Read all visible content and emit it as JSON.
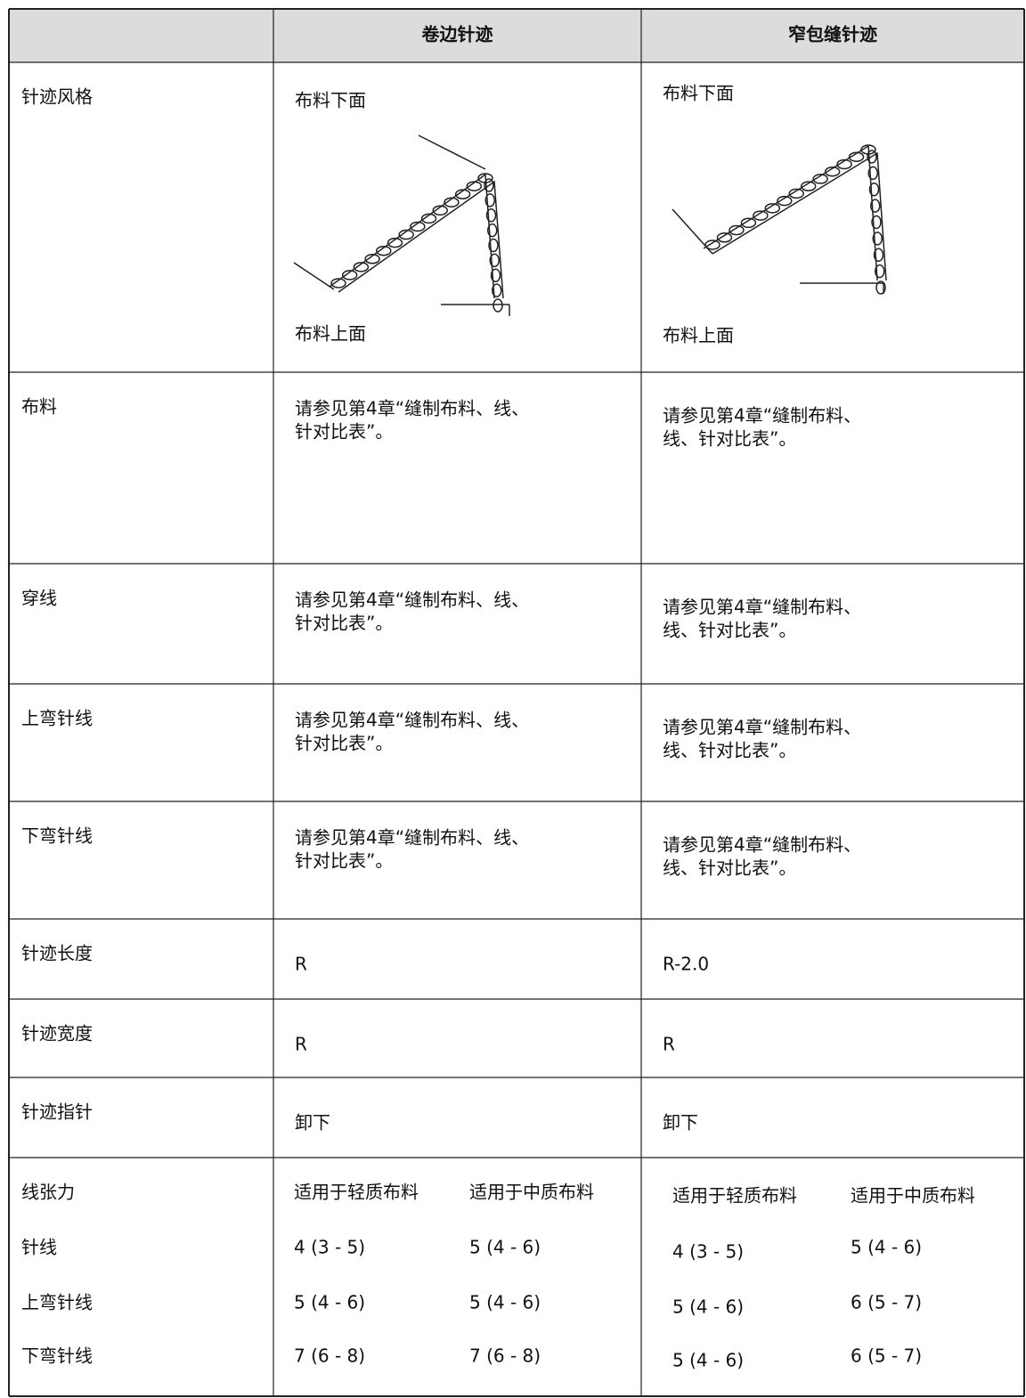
{
  "table": {
    "header": [
      "卷边针迹",
      "窄包缝针迹"
    ],
    "rows": [
      {
        "label": "针迹风格",
        "cells": [
          {
            "top": "布料下面",
            "bottom": "布料上面"
          },
          {
            "top": "布料下面",
            "bottom": "布料上面"
          }
        ]
      },
      {
        "label": "布料",
        "cells": [
          [
            "请参见第4章“缝制布料、线、",
            "针对比表”。"
          ],
          [
            "请参见第4章“缝制布料、",
            "线、针对比表”。"
          ]
        ]
      },
      {
        "label": "穿线",
        "cells": [
          [
            "请参见第4章“缝制布料、线、",
            "针对比表”。"
          ],
          [
            "请参见第4章“缝制布料、",
            "线、针对比表”。"
          ]
        ]
      },
      {
        "label": "上弯针线",
        "cells": [
          [
            "请参见第4章“缝制布料、线、",
            "针对比表”。"
          ],
          [
            "请参见第4章“缝制布料、",
            "线、针对比表”。"
          ]
        ]
      },
      {
        "label": "下弯针线",
        "cells": [
          [
            "请参见第4章“缝制布料、线、",
            "针对比表”。"
          ],
          [
            "请参见第4章“缝制布料、",
            "线、针对比表”。"
          ]
        ]
      },
      {
        "label": "针迹长度",
        "cells": [
          [
            "R"
          ],
          [
            "R-2.0"
          ]
        ]
      },
      {
        "label": "针迹宽度",
        "cells": [
          [
            "R"
          ],
          [
            "R"
          ]
        ]
      },
      {
        "label": "针迹指针",
        "cells": [
          [
            "卸下"
          ],
          [
            "卸下"
          ]
        ]
      }
    ],
    "tension": {
      "labels": [
        "线张力",
        "针线",
        "上弯针线",
        "下弯针线"
      ],
      "columns": [
        [
          [
            "适用于轻质布料",
            "4 (3 - 5)",
            "5 (4 - 6)",
            "7 (6 - 8)"
          ],
          [
            "适用于中质布料",
            "5 (4 - 6)",
            "5 (4 - 6)",
            "7 (6 - 8)"
          ]
        ],
        [
          [
            "适用于轻质布料",
            "4 (3 - 5)",
            "5 (4 - 6)",
            "5 (4 - 6)"
          ],
          [
            "适用于中质布料",
            "5 (4 - 6)",
            "6 (5 - 7)",
            "6 (5 - 7)"
          ]
        ]
      ]
    }
  }
}
